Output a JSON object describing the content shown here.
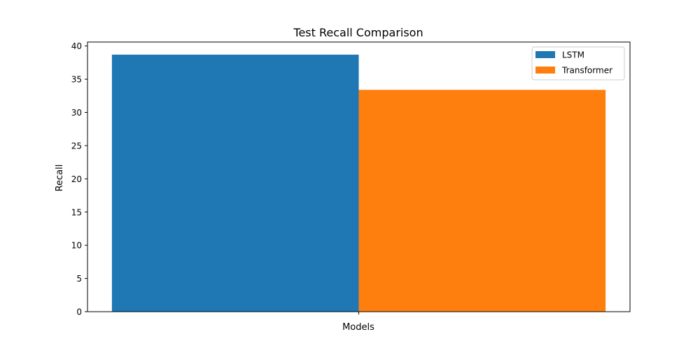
{
  "chart_data": {
    "type": "bar",
    "title": "Test Recall Comparison",
    "xlabel": "Models",
    "ylabel": "Recall",
    "categories": [
      "Models"
    ],
    "series": [
      {
        "name": "LSTM",
        "values": [
          38.7
        ],
        "color": "#1f77b4"
      },
      {
        "name": "Transformer",
        "values": [
          33.4
        ],
        "color": "#ff7f0e"
      }
    ],
    "ylim": [
      0,
      40.6
    ],
    "yticks": [
      0,
      5,
      10,
      15,
      20,
      25,
      30,
      35,
      40
    ],
    "grid": false,
    "legend_position": "top-right"
  }
}
